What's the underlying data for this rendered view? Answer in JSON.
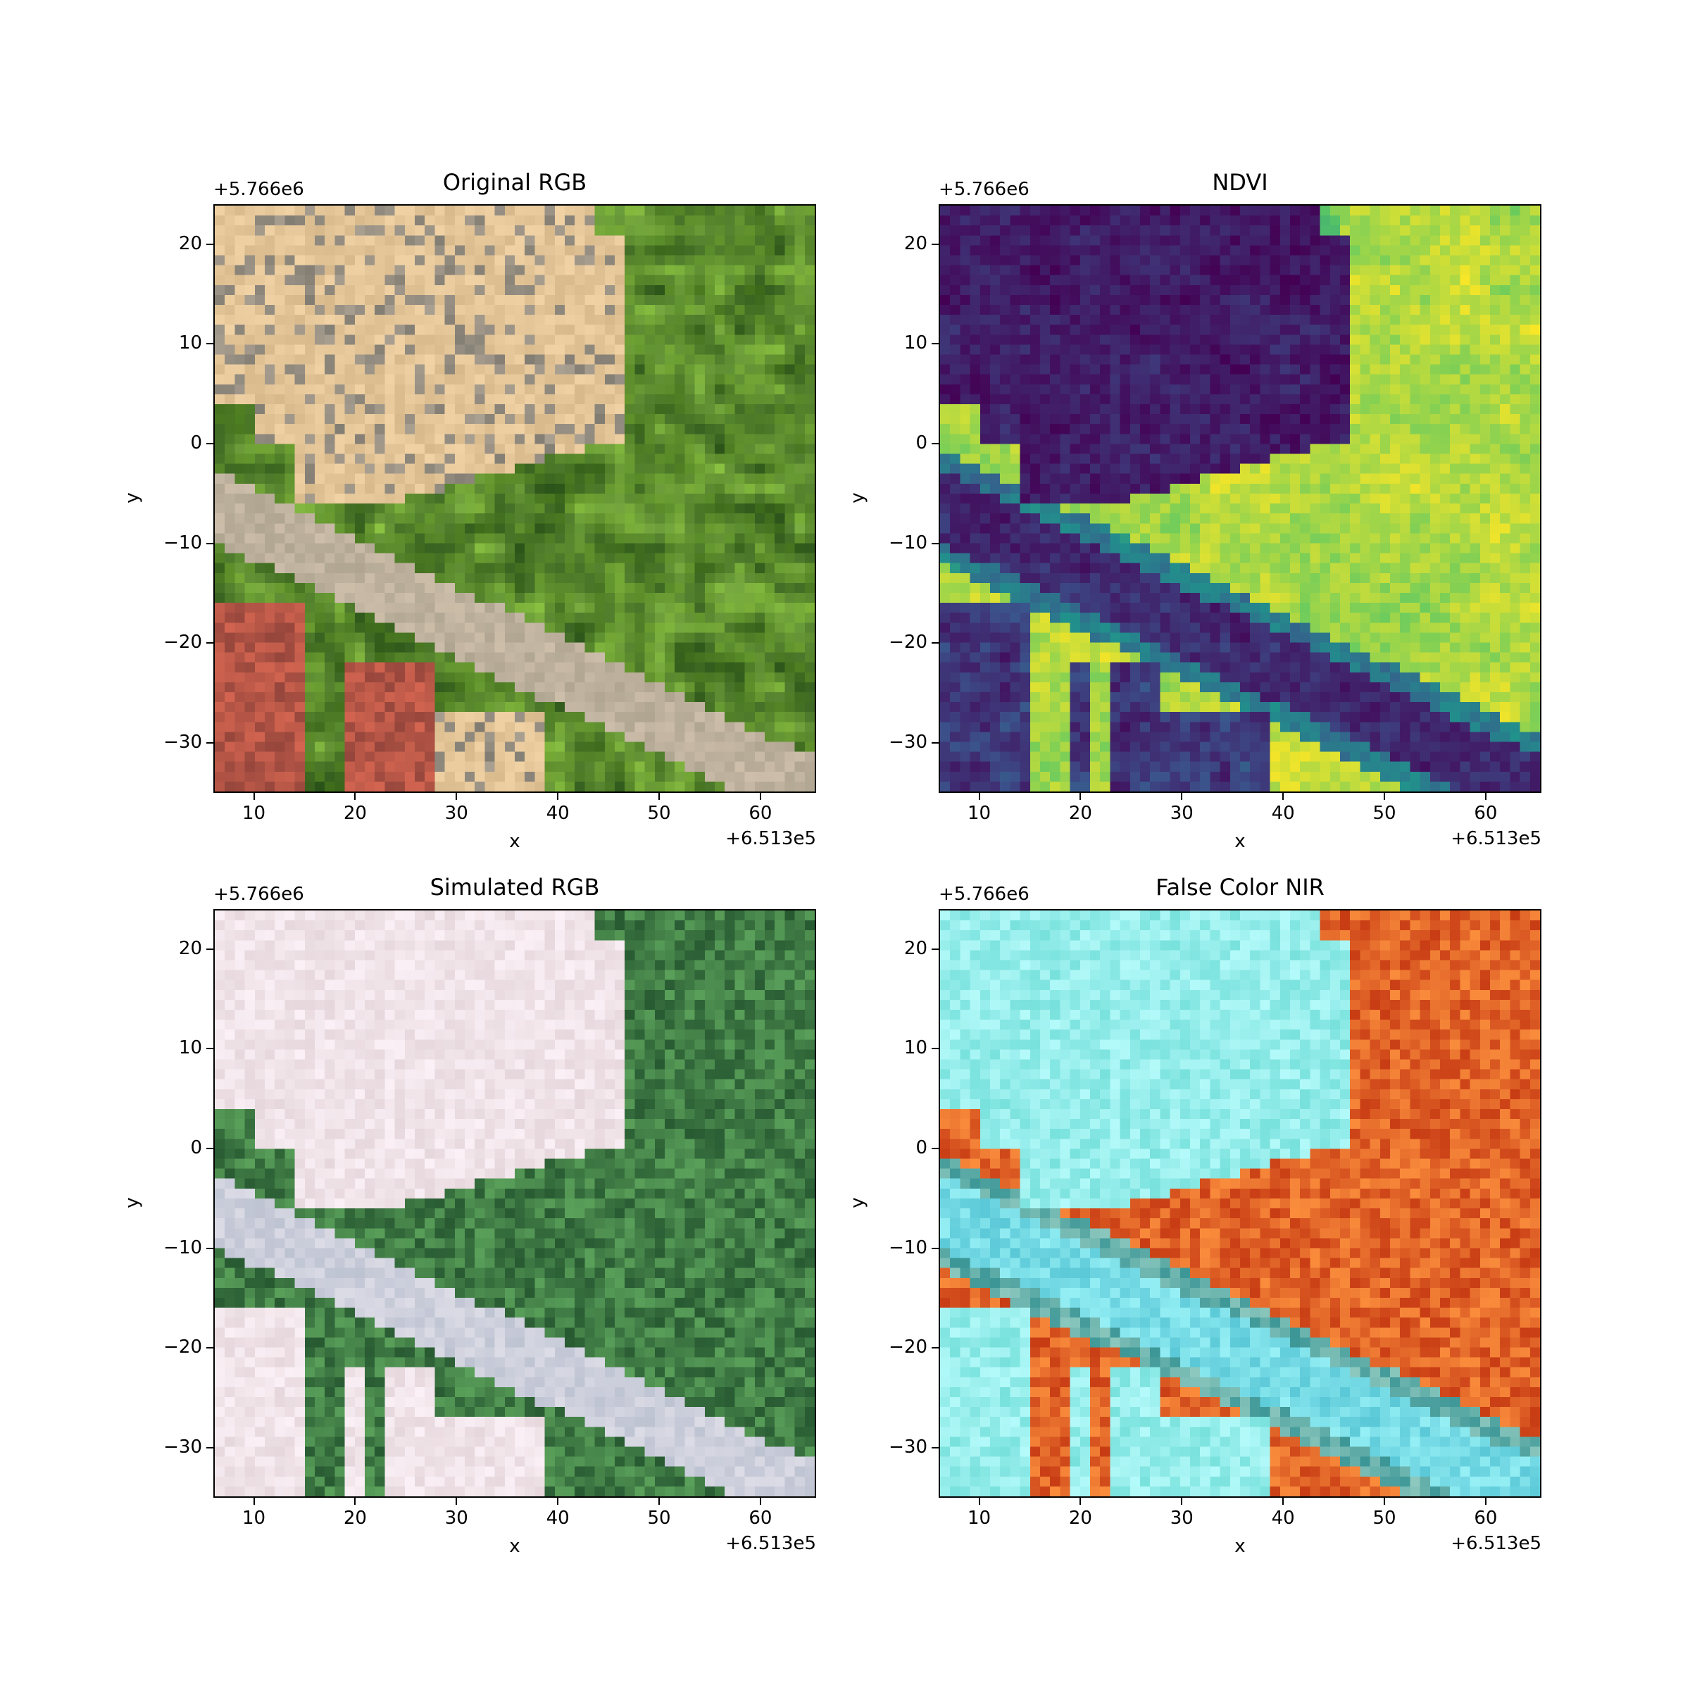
{
  "figure": {
    "panels": [
      {
        "title": "Original RGB",
        "style": "original_rgb"
      },
      {
        "title": "NDVI",
        "style": "ndvi"
      },
      {
        "title": "Simulated RGB",
        "style": "simulated_rgb"
      },
      {
        "title": "False Color NIR",
        "style": "false_color_nir"
      }
    ]
  },
  "chart_data": [
    {
      "type": "heatmap",
      "title": "Original RGB",
      "xlabel": "x",
      "ylabel": "y",
      "x_offset_text": "+6.513e5",
      "y_offset_text": "+5.766e6",
      "xlim": [
        6,
        65.5
      ],
      "ylim": [
        -35,
        24
      ],
      "xticks": [
        10,
        20,
        30,
        40,
        50,
        60
      ],
      "yticks": [
        20,
        10,
        0,
        -10,
        -20,
        -30
      ],
      "xtick_labels": [
        "10",
        "20",
        "30",
        "40",
        "50",
        "60"
      ],
      "ytick_labels": [
        "20",
        "10",
        "0",
        "−10",
        "−20",
        "−30"
      ],
      "content": "aerial RGB image: bare soil excavation with stone wall outlines, trees, a diagonal road, red-roofed buildings and parked cars"
    },
    {
      "type": "heatmap",
      "title": "NDVI",
      "xlabel": "x",
      "ylabel": "y",
      "x_offset_text": "+6.513e5",
      "y_offset_text": "+5.766e6",
      "xlim": [
        6,
        65.5
      ],
      "ylim": [
        -35,
        24
      ],
      "xticks": [
        10,
        20,
        30,
        40,
        50,
        60
      ],
      "yticks": [
        20,
        10,
        0,
        -10,
        -20,
        -30
      ],
      "xtick_labels": [
        "10",
        "20",
        "30",
        "40",
        "50",
        "60"
      ],
      "ytick_labels": [
        "20",
        "10",
        "0",
        "−10",
        "−20",
        "−30"
      ],
      "colormap": "viridis",
      "content": "low NDVI (purple) over bare soil and road, high NDVI (yellow) over vegetation"
    },
    {
      "type": "heatmap",
      "title": "Simulated RGB",
      "xlabel": "x",
      "ylabel": "y",
      "x_offset_text": "+6.513e5",
      "y_offset_text": "+5.766e6",
      "xlim": [
        6,
        65.5
      ],
      "ylim": [
        -35,
        24
      ],
      "xticks": [
        10,
        20,
        30,
        40,
        50,
        60
      ],
      "yticks": [
        20,
        10,
        0,
        -10,
        -20,
        -30
      ],
      "xtick_labels": [
        "10",
        "20",
        "30",
        "40",
        "50",
        "60"
      ],
      "ytick_labels": [
        "20",
        "10",
        "0",
        "−10",
        "−20",
        "−30"
      ],
      "content": "coarse pixelated RGB: light pink soil, green vegetation, pale grey road"
    },
    {
      "type": "heatmap",
      "title": "False Color NIR",
      "xlabel": "x",
      "ylabel": "y",
      "x_offset_text": "+6.513e5",
      "y_offset_text": "+5.766e6",
      "xlim": [
        6,
        65.5
      ],
      "ylim": [
        -35,
        24
      ],
      "xticks": [
        10,
        20,
        30,
        40,
        50,
        60
      ],
      "yticks": [
        20,
        10,
        0,
        -10,
        -20,
        -30
      ],
      "xtick_labels": [
        "10",
        "20",
        "30",
        "40",
        "50",
        "60"
      ],
      "ytick_labels": [
        "20",
        "10",
        "0",
        "−10",
        "−20",
        "−30"
      ],
      "content": "false color composite: cyan soil and road, orange-red vegetation"
    }
  ]
}
